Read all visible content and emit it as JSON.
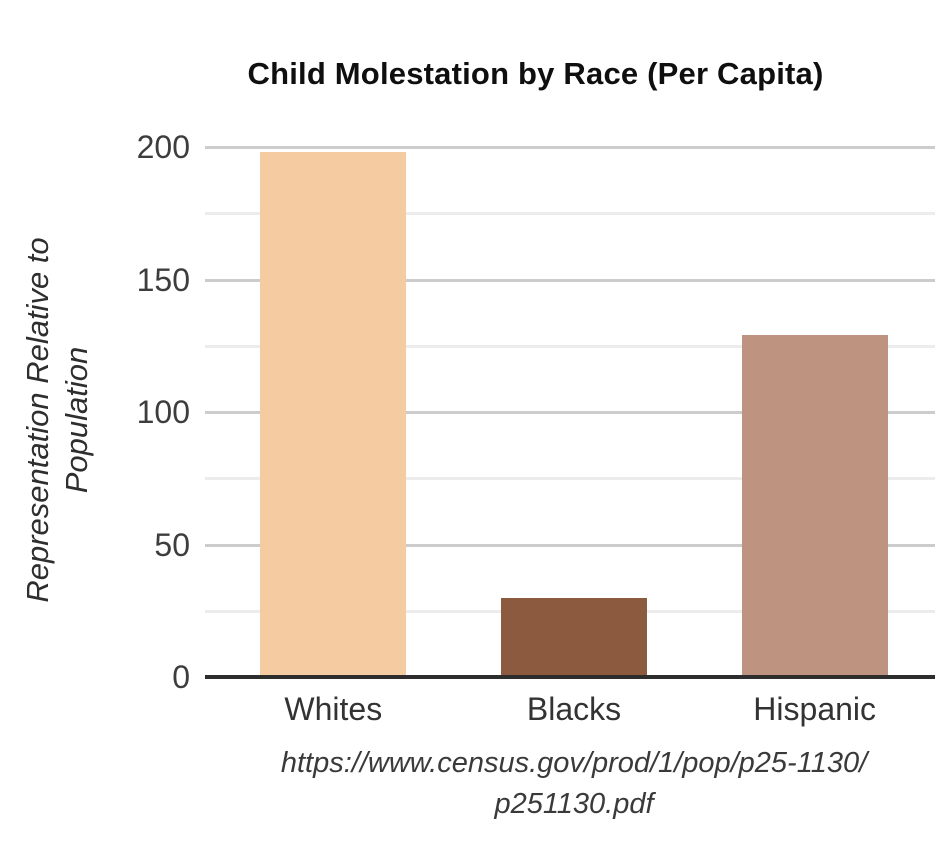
{
  "chart_data": {
    "type": "bar",
    "title": "Child Molestation by Race (Per Capita)",
    "ylabel": "Representation Relative to\nPopulation",
    "xlabel": "",
    "categories": [
      "Whites",
      "Blacks",
      "Hispanic"
    ],
    "values": [
      198,
      30,
      129
    ],
    "bar_colors": [
      "#F5CCA2",
      "#8C5B3F",
      "#BE9480"
    ],
    "ylim": [
      0,
      200
    ],
    "yticks": [
      0,
      50,
      100,
      150,
      200
    ],
    "minor_tick_step": 25,
    "grid": "horizontal-major-and-minor",
    "legend": "none",
    "source_note": "https://www.census.gov/prod/1/pop/p25-1130/\np251130.pdf"
  },
  "colors": {
    "background": "#ffffff",
    "major_gridline": "#cccccc",
    "minor_gridline": "#ececec",
    "axis_line": "#2d2d2d",
    "tick_label_text": "#3d3d3d",
    "title_text": "#0f0f0f"
  }
}
